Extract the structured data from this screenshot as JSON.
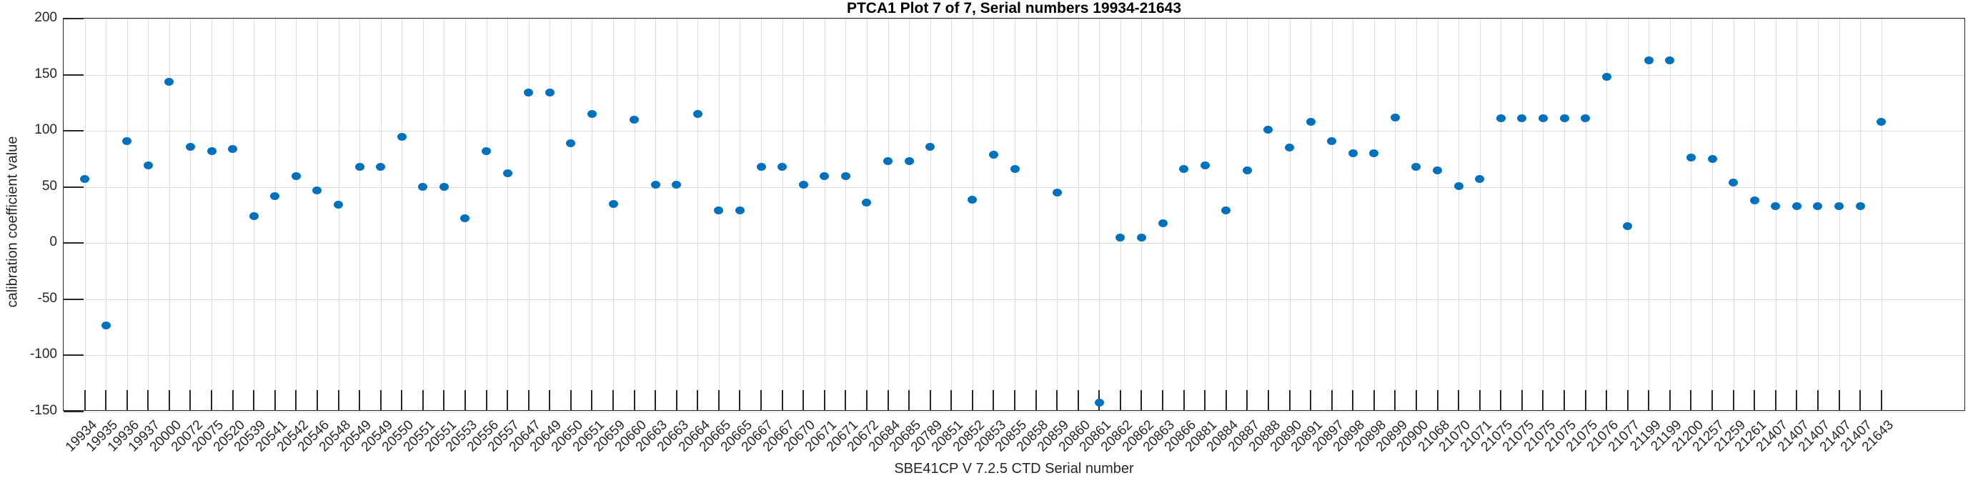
{
  "chart_data": {
    "type": "scatter",
    "title": "PTCA1 Plot 7 of 7, Serial numbers 19934-21643",
    "xlabel": "SBE41CP V 7.2.5 CTD Serial number",
    "ylabel": "calibration coefficient value",
    "ylim": [
      -150,
      200
    ],
    "yticks": [
      200,
      150,
      100,
      50,
      0,
      -50,
      -100,
      -150
    ],
    "grid": true,
    "legend_position": "none",
    "marker_color": "#0072BD",
    "axis_color": "#262626",
    "grid_color": "#dcdcdc",
    "categories": [
      "19934",
      "19935",
      "19936",
      "19937",
      "20000",
      "20072",
      "20075",
      "20520",
      "20539",
      "20541",
      "20542",
      "20546",
      "20548",
      "20549",
      "20549",
      "20550",
      "20551",
      "20551",
      "20553",
      "20556",
      "20557",
      "20647",
      "20649",
      "20650",
      "20651",
      "20659",
      "20660",
      "20663",
      "20663",
      "20664",
      "20665",
      "20665",
      "20667",
      "20667",
      "20670",
      "20671",
      "20671",
      "20672",
      "20684",
      "20685",
      "20789",
      "20851",
      "20852",
      "20853",
      "20855",
      "20858",
      "20859",
      "20860",
      "20861",
      "20862",
      "20862",
      "20863",
      "20866",
      "20881",
      "20884",
      "20887",
      "20888",
      "20890",
      "20891",
      "20897",
      "20898",
      "20898",
      "20899",
      "20900",
      "21068",
      "21070",
      "21071",
      "21075",
      "21075",
      "21075",
      "21075",
      "21075",
      "21076",
      "21077",
      "21199",
      "21199",
      "21200",
      "21257",
      "21259",
      "21261",
      "21407",
      "21407",
      "21407",
      "21407",
      "21407",
      "21643"
    ],
    "values": [
      57,
      -73,
      91,
      69,
      144,
      86,
      82,
      84,
      24,
      42,
      60,
      47,
      34,
      68,
      68,
      95,
      50,
      50,
      22,
      82,
      62,
      134,
      134,
      89,
      115,
      35,
      110,
      52,
      52,
      115,
      29,
      29,
      68,
      68,
      52,
      60,
      60,
      36,
      73,
      73,
      86,
      null,
      39,
      79,
      66,
      null,
      45,
      null,
      -142,
      5,
      5,
      18,
      66,
      69,
      29,
      65,
      101,
      85,
      108,
      91,
      80,
      80,
      112,
      68,
      65,
      51,
      57,
      111,
      111,
      111,
      111,
      111,
      148,
      15,
      163,
      163,
      76,
      75,
      54,
      38,
      33,
      33,
      33,
      33,
      33,
      108
    ]
  }
}
